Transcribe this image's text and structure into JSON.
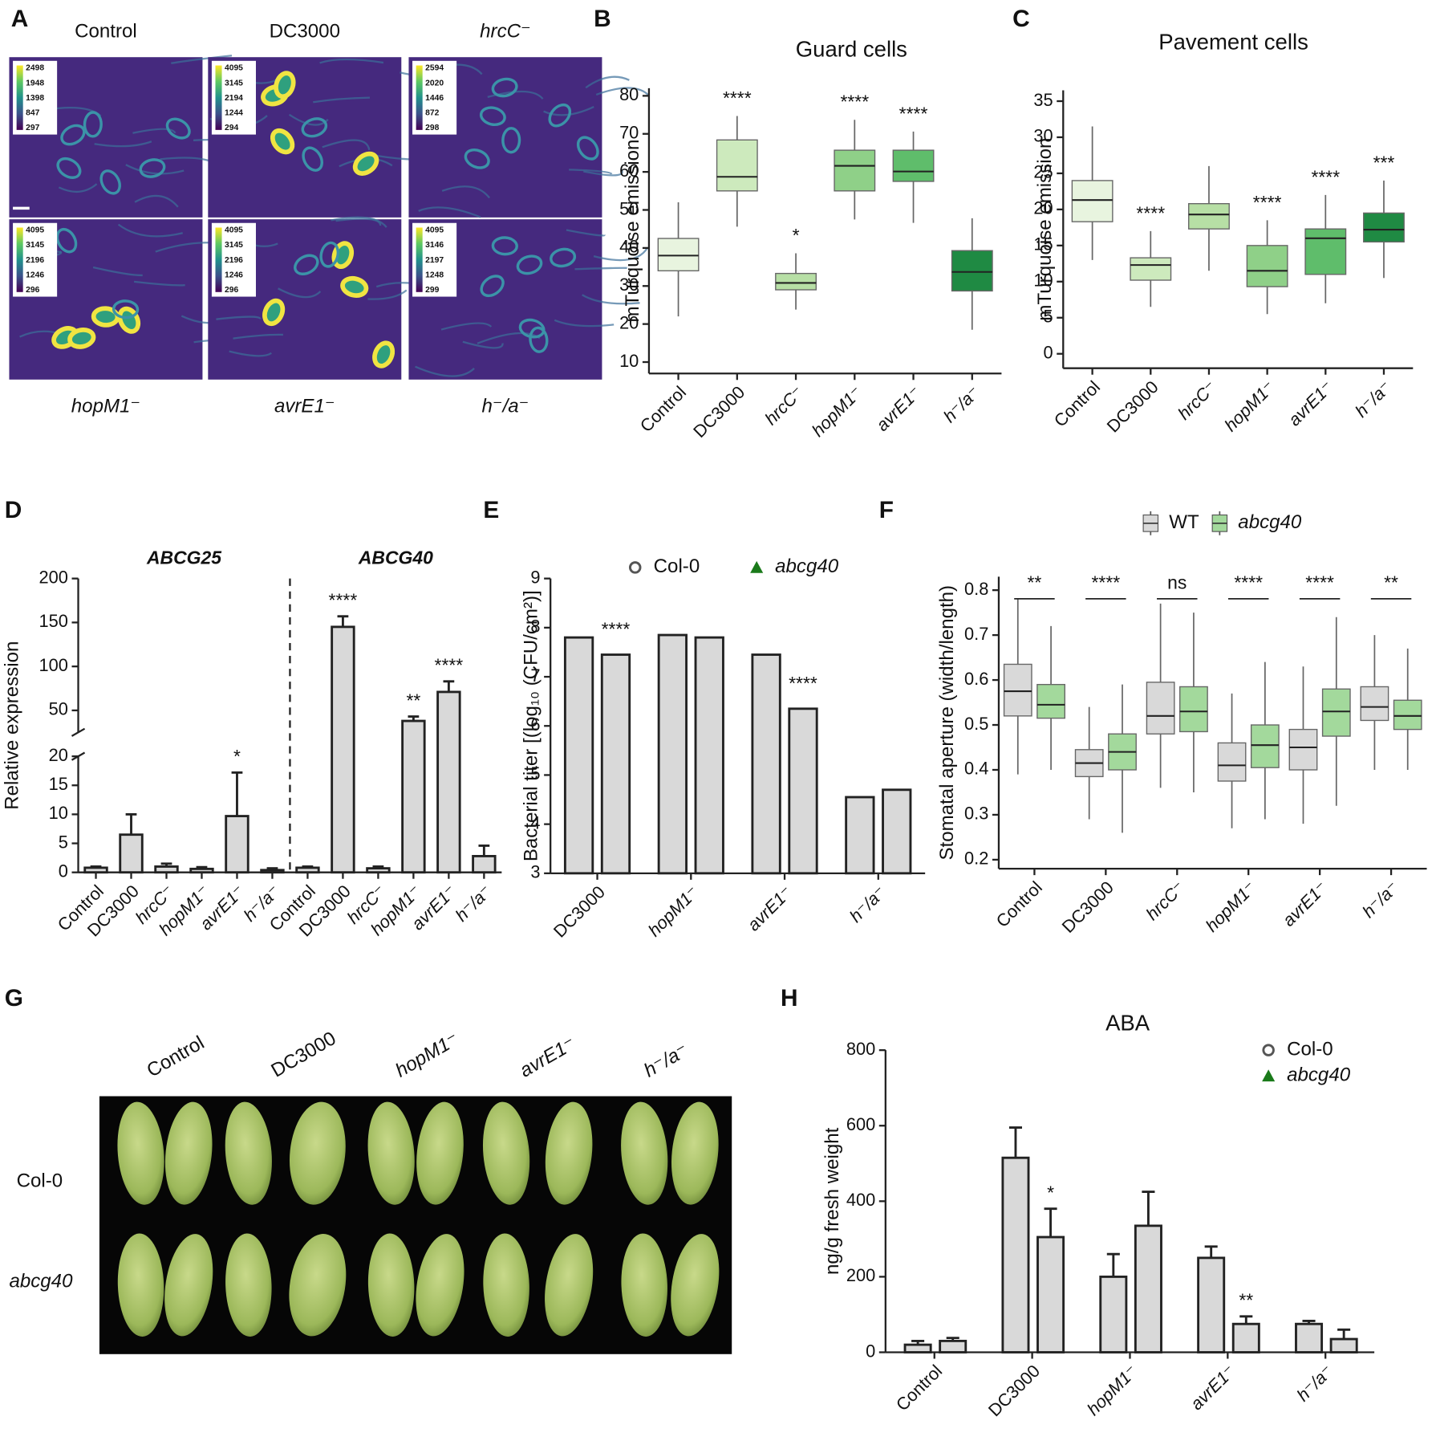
{
  "chart_data": [
    {
      "label": "A",
      "type": "image-grid",
      "panels": [
        {
          "title": "Control",
          "colorbar": [
            2498,
            1948,
            1398,
            847,
            297
          ]
        },
        {
          "title": "DC3000",
          "colorbar": [
            4095,
            3145,
            2194,
            1244,
            294
          ]
        },
        {
          "title": "hrcC⁻",
          "colorbar": [
            2594,
            2020,
            1446,
            872,
            298
          ]
        },
        {
          "title": "hopM1⁻",
          "colorbar": [
            4095,
            3145,
            2196,
            1246,
            296
          ]
        },
        {
          "title": "avrE1⁻",
          "colorbar": [
            4095,
            3145,
            2196,
            1246,
            296
          ]
        },
        {
          "title": "h⁻/a⁻",
          "colorbar": [
            4095,
            3146,
            2197,
            1248,
            299
          ]
        }
      ]
    },
    {
      "label": "B",
      "type": "box",
      "title": "Guard cells",
      "ylabel": "mTurquoise emission",
      "categories": [
        "Control",
        "DC3000",
        "hrcC⁻",
        "hopM1⁻",
        "avrE1⁻",
        "h⁻/a⁻"
      ],
      "colors": [
        "#e8f4df",
        "#cdeabd",
        "#b7dfa5",
        "#8fd088",
        "#5fbd6b",
        "#1f8a43"
      ],
      "whisker_low": [
        22,
        45.6,
        23.8,
        47.5,
        46.6,
        18.5
      ],
      "q1": [
        34,
        55,
        29,
        55,
        57.5,
        28.7
      ],
      "median": [
        38,
        58.7,
        30.8,
        61.6,
        60.1,
        33.7
      ],
      "q3": [
        42.5,
        68.4,
        33.3,
        65.7,
        65.7,
        39.3
      ],
      "whisker_high": [
        52,
        74.7,
        38.6,
        73.7,
        70.6,
        47.8
      ],
      "annotations": [
        null,
        "****",
        "*",
        "****",
        "****",
        null
      ],
      "ylim": [
        7,
        82
      ],
      "yticks": [
        10,
        20,
        30,
        40,
        50,
        60,
        70,
        80
      ]
    },
    {
      "label": "C",
      "type": "box",
      "title": "Pavement cells",
      "ylabel": "mTurquoise emission",
      "categories": [
        "Control",
        "DC3000",
        "hrcC⁻",
        "hopM1⁻",
        "avrE1⁻",
        "h⁻/a⁻"
      ],
      "colors": [
        "#e8f4df",
        "#cdeabd",
        "#b7dfa5",
        "#8fd088",
        "#5fbd6b",
        "#1f8a43"
      ],
      "whisker_low": [
        13,
        6.5,
        11.5,
        5.5,
        7,
        10.5
      ],
      "q1": [
        18.3,
        10.2,
        17.3,
        9.3,
        11,
        15.5
      ],
      "median": [
        21.3,
        12.3,
        19.3,
        11.5,
        16,
        17.2
      ],
      "q3": [
        24,
        13.3,
        20.8,
        15,
        17.3,
        19.5
      ],
      "whisker_high": [
        31.5,
        17,
        26,
        18.5,
        22,
        24
      ],
      "annotations": [
        null,
        "****",
        null,
        "****",
        "****",
        "***"
      ],
      "ylim": [
        -2,
        36.5
      ],
      "yticks": [
        0,
        5,
        10,
        15,
        20,
        25,
        30,
        35
      ]
    },
    {
      "label": "D",
      "type": "broken-bar",
      "ylabel": "Relative expression",
      "categories": [
        "Control",
        "DC3000",
        "hrcC⁻",
        "hopM1⁻",
        "avrE1⁻",
        "h⁻/a⁻"
      ],
      "bar_color": "#d9d9d9",
      "series": [
        {
          "name": "ABCG25",
          "values": [
            0.8,
            6.5,
            1.0,
            0.6,
            9.7,
            0.4
          ],
          "errors": [
            0.2,
            3.5,
            0.5,
            0.3,
            7.5,
            0.3
          ],
          "annotations": [
            null,
            null,
            null,
            null,
            "*",
            null
          ]
        },
        {
          "name": "ABCG40",
          "values": [
            0.8,
            145,
            0.7,
            38,
            71,
            2.8
          ],
          "errors": [
            0.2,
            12,
            0.3,
            5,
            12,
            1.8
          ],
          "annotations": [
            null,
            "****",
            null,
            "**",
            "****",
            null
          ]
        }
      ],
      "ylim": [
        0,
        200
      ],
      "ybreak": [
        20,
        25
      ],
      "yticks": [
        0,
        5,
        10,
        15,
        20,
        50,
        100,
        150,
        200
      ]
    },
    {
      "label": "E",
      "type": "bar",
      "ylabel": "Bacterial titer [(log₁₀ (CFU/cm²)]",
      "categories": [
        "DC3000",
        "hopM1⁻",
        "avrE1⁻",
        "h⁻/a⁻"
      ],
      "bar_color": "#d9d9d9",
      "series": [
        {
          "name": "Col-0",
          "color": "#555555",
          "marker": "circle",
          "values": [
            7.8,
            7.85,
            7.45,
            4.55
          ]
        },
        {
          "name": "abcg40",
          "color": "#1a7a1a",
          "marker": "triangle",
          "italic": true,
          "values": [
            7.45,
            7.8,
            6.35,
            4.7
          ],
          "annotations": [
            "****",
            null,
            "****",
            null
          ]
        }
      ],
      "ylim": [
        3,
        9
      ],
      "yticks": [
        3,
        4,
        5,
        6,
        7,
        8,
        9
      ],
      "legend": "top"
    },
    {
      "label": "F",
      "type": "box",
      "ylabel": "Stomatal aperture (width/length)",
      "categories": [
        "Control",
        "DC3000",
        "hrcC⁻",
        "hopM1⁻",
        "avrE1⁻",
        "h⁻/a⁻"
      ],
      "series": [
        {
          "name": "WT",
          "color": "#d9d9d9",
          "whisker_low": [
            0.39,
            0.29,
            0.36,
            0.27,
            0.28,
            0.4
          ],
          "q1": [
            0.52,
            0.385,
            0.48,
            0.375,
            0.4,
            0.51
          ],
          "median": [
            0.575,
            0.415,
            0.52,
            0.41,
            0.45,
            0.54
          ],
          "q3": [
            0.635,
            0.445,
            0.595,
            0.46,
            0.49,
            0.585
          ],
          "whisker_high": [
            0.78,
            0.54,
            0.77,
            0.57,
            0.63,
            0.7
          ]
        },
        {
          "name": "abcg40",
          "color": "#a3d99c",
          "italic": true,
          "whisker_low": [
            0.4,
            0.26,
            0.35,
            0.29,
            0.32,
            0.4
          ],
          "q1": [
            0.515,
            0.4,
            0.485,
            0.405,
            0.475,
            0.49
          ],
          "median": [
            0.545,
            0.44,
            0.53,
            0.455,
            0.53,
            0.52
          ],
          "q3": [
            0.59,
            0.48,
            0.585,
            0.5,
            0.58,
            0.555
          ],
          "whisker_high": [
            0.72,
            0.59,
            0.75,
            0.64,
            0.74,
            0.67
          ]
        }
      ],
      "annotations": [
        "**",
        "****",
        "ns",
        "****",
        "****",
        "**"
      ],
      "ylim": [
        0.18,
        0.83
      ],
      "yticks": [
        0.2,
        0.3,
        0.4,
        0.5,
        0.6,
        0.7,
        0.8
      ],
      "legend": "top"
    },
    {
      "label": "G",
      "type": "image",
      "columns": [
        "Control",
        "DC3000",
        "hopM1⁻",
        "avrE1⁻",
        "h⁻/a⁻"
      ],
      "rows": [
        {
          "label": "Col-0"
        },
        {
          "label": "abcg40",
          "italic": true
        }
      ]
    },
    {
      "label": "H",
      "type": "bar",
      "title": "ABA",
      "ylabel": "ng/g fresh weight",
      "categories": [
        "Control",
        "DC3000",
        "hopM1⁻",
        "avrE1⁻",
        "h⁻/a⁻"
      ],
      "bar_color": "#d9d9d9",
      "series": [
        {
          "name": "Col-0",
          "color": "#555555",
          "marker": "circle",
          "values": [
            20,
            515,
            200,
            250,
            75
          ],
          "errors": [
            10,
            80,
            60,
            30,
            8
          ]
        },
        {
          "name": "abcg40",
          "color": "#1a7a1a",
          "marker": "triangle",
          "italic": true,
          "values": [
            30,
            305,
            335,
            75,
            35
          ],
          "errors": [
            8,
            75,
            90,
            20,
            25
          ],
          "annotations": [
            null,
            "*",
            null,
            "**",
            null
          ]
        }
      ],
      "ylim": [
        0,
        800
      ],
      "yticks": [
        0,
        200,
        400,
        600,
        800
      ],
      "legend": "top-right"
    }
  ]
}
